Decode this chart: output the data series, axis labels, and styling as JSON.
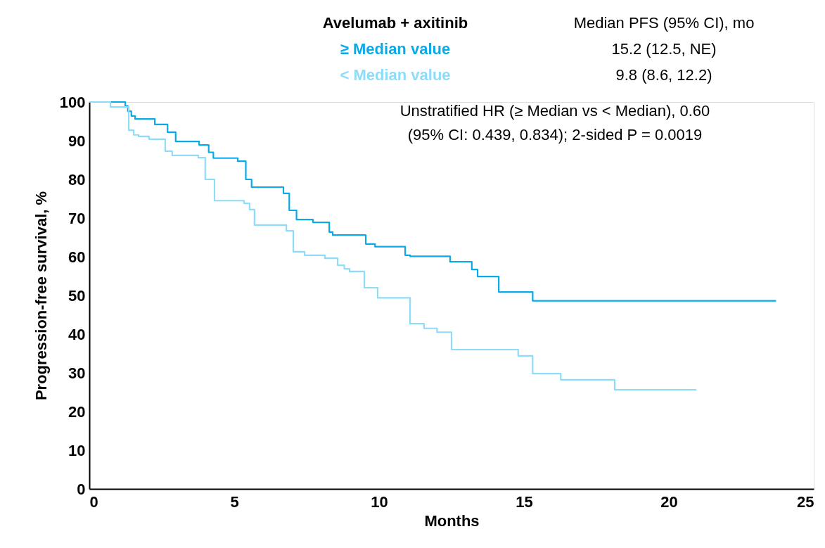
{
  "chart_data": {
    "type": "step",
    "xlabel": "Months",
    "ylabel": "Progression-free survival, %",
    "legend_title": "Avelumab + axitinib",
    "legend": "top",
    "xlim": [
      0,
      25
    ],
    "xticks": [
      0,
      5,
      10,
      15,
      20,
      25
    ],
    "ylim": [
      0,
      100
    ],
    "yticks": [
      0,
      10,
      20,
      30,
      40,
      50,
      60,
      70,
      80,
      90,
      100
    ],
    "grid": false,
    "line_style": "solid",
    "marker": "none",
    "annotations": [
      "Median PFS (95% CI), mo",
      "15.2 (12.5, NE)",
      "9.8 (8.6, 12.2)",
      "Unstratified HR (≥ Median vs < Median), 0.60",
      "(95% CI: 0.439, 0.834); 2-sided P = 0.0019"
    ],
    "series": [
      {
        "name": "≥ Median value",
        "color": "#0aaae8",
        "x": [
          0,
          1.24,
          1.33,
          1.45,
          1.58,
          2.26,
          2.7,
          2.98,
          3.79,
          4.12,
          4.28,
          5.12,
          5.4,
          5.6,
          5.8,
          6.7,
          6.9,
          7.15,
          7.72,
          8.28,
          8.4,
          8.65,
          9.54,
          9.86,
          10.0,
          10.9,
          11.07,
          12.45,
          13.2,
          13.4,
          14.13,
          15.3,
          23.7
        ],
        "values": [
          100,
          99,
          97.6,
          96.4,
          95.6,
          94.2,
          92.2,
          89.8,
          88.9,
          87,
          85.5,
          84.7,
          80,
          78,
          78,
          76.4,
          72,
          69.6,
          68.9,
          66.4,
          65.6,
          65.6,
          63.3,
          62.6,
          62.6,
          60.4,
          60.1,
          58.7,
          56.7,
          54.9,
          50.9,
          48.6,
          48.6
        ]
      },
      {
        "name": "< Median value",
        "color": "#8fdcf8",
        "x": [
          0,
          0.73,
          1.36,
          1.53,
          1.7,
          2.06,
          2.62,
          2.86,
          3.76,
          4.0,
          4.32,
          5.34,
          5.53,
          5.7,
          6.8,
          7.04,
          7.43,
          8.13,
          8.57,
          8.8,
          8.98,
          9.49,
          9.95,
          11.07,
          11.55,
          12.0,
          12.5,
          12.65,
          14.8,
          15.3,
          15.47,
          16.27,
          18.13,
          20.95
        ],
        "values": [
          100,
          98.7,
          92.7,
          91.5,
          91.1,
          90.4,
          87.3,
          86.2,
          85.6,
          80,
          74.5,
          73.8,
          72.2,
          68.2,
          66.7,
          61.3,
          60.4,
          59.6,
          57.8,
          56.9,
          56.2,
          52,
          49.4,
          42.7,
          41.5,
          40.5,
          36.0,
          36.0,
          34.4,
          29.8,
          29.8,
          28.2,
          25.6,
          25.6
        ]
      }
    ]
  }
}
